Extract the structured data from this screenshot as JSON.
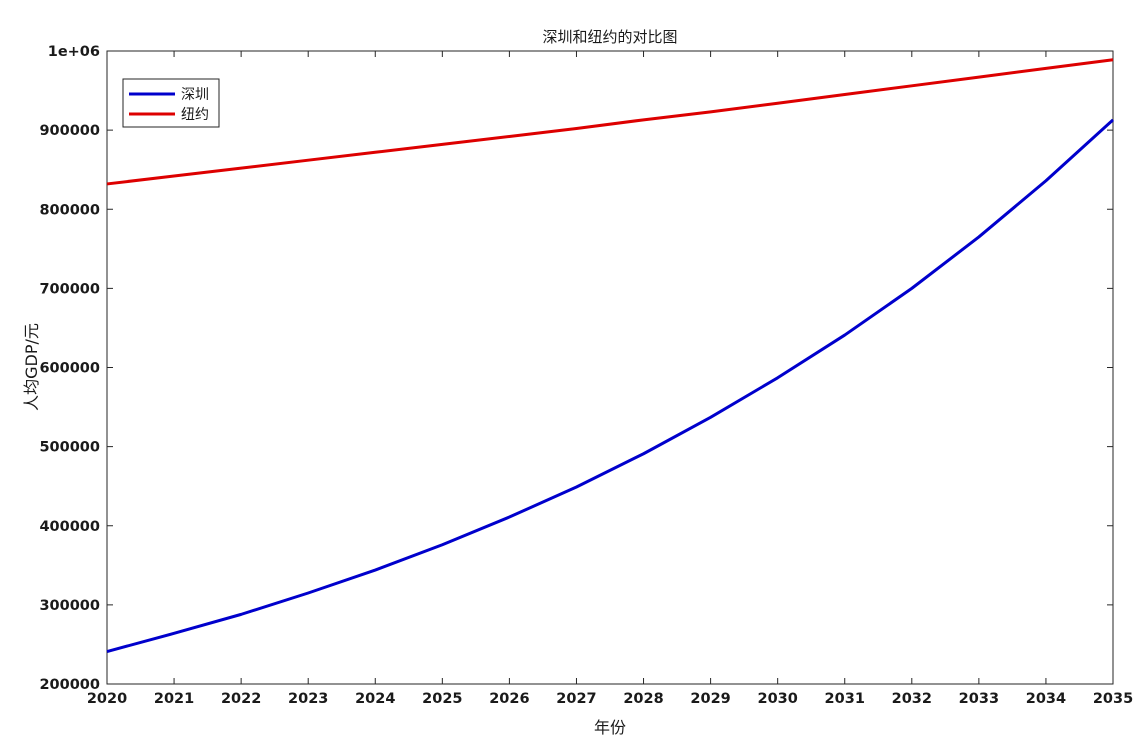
{
  "chart_data": {
    "type": "line",
    "title": "深圳和纽约的对比图",
    "xlabel": "年份",
    "ylabel": "人均GDP/元",
    "x": [
      2020,
      2021,
      2022,
      2023,
      2024,
      2025,
      2026,
      2027,
      2028,
      2029,
      2030,
      2031,
      2032,
      2033,
      2034,
      2035
    ],
    "xlim": [
      2020,
      2035
    ],
    "ylim": [
      200000,
      1000000
    ],
    "x_tick_labels": [
      "2020",
      "2021",
      "2022",
      "2023",
      "2024",
      "2025",
      "2026",
      "2027",
      "2028",
      "2029",
      "2030",
      "2031",
      "2032",
      "2033",
      "2034",
      "2035"
    ],
    "y_ticks": [
      200000,
      300000,
      400000,
      500000,
      600000,
      700000,
      800000,
      900000,
      1000000
    ],
    "y_tick_labels": [
      "200000",
      "300000",
      "400000",
      "500000",
      "600000",
      "700000",
      "800000",
      "900000",
      "1e+06"
    ],
    "grid": false,
    "legend_position": "top-left",
    "series": [
      {
        "name": "深圳",
        "color": "#0000cc",
        "values": [
          241000,
          264000,
          288000,
          315000,
          344000,
          376000,
          411000,
          449000,
          491000,
          537000,
          587000,
          641000,
          700000,
          765000,
          836000,
          913000
        ]
      },
      {
        "name": "纽约",
        "color": "#dd0000",
        "values": [
          832000,
          842000,
          852000,
          862000,
          872000,
          882000,
          892000,
          902000,
          913000,
          923000,
          934000,
          945000,
          956000,
          967000,
          978000,
          989000
        ]
      }
    ]
  }
}
